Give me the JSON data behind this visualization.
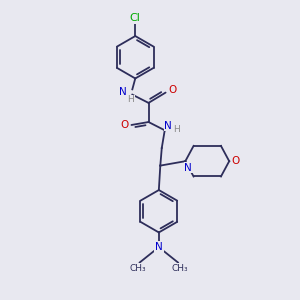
{
  "bg_color": "#e8e8f0",
  "bond_color": "#2d2d5a",
  "atom_colors": {
    "N": "#0000cc",
    "O": "#cc0000",
    "Cl": "#00aa00",
    "C": "#2d2d5a",
    "H": "#888888"
  },
  "font_size": 7.5,
  "bond_width": 1.3
}
